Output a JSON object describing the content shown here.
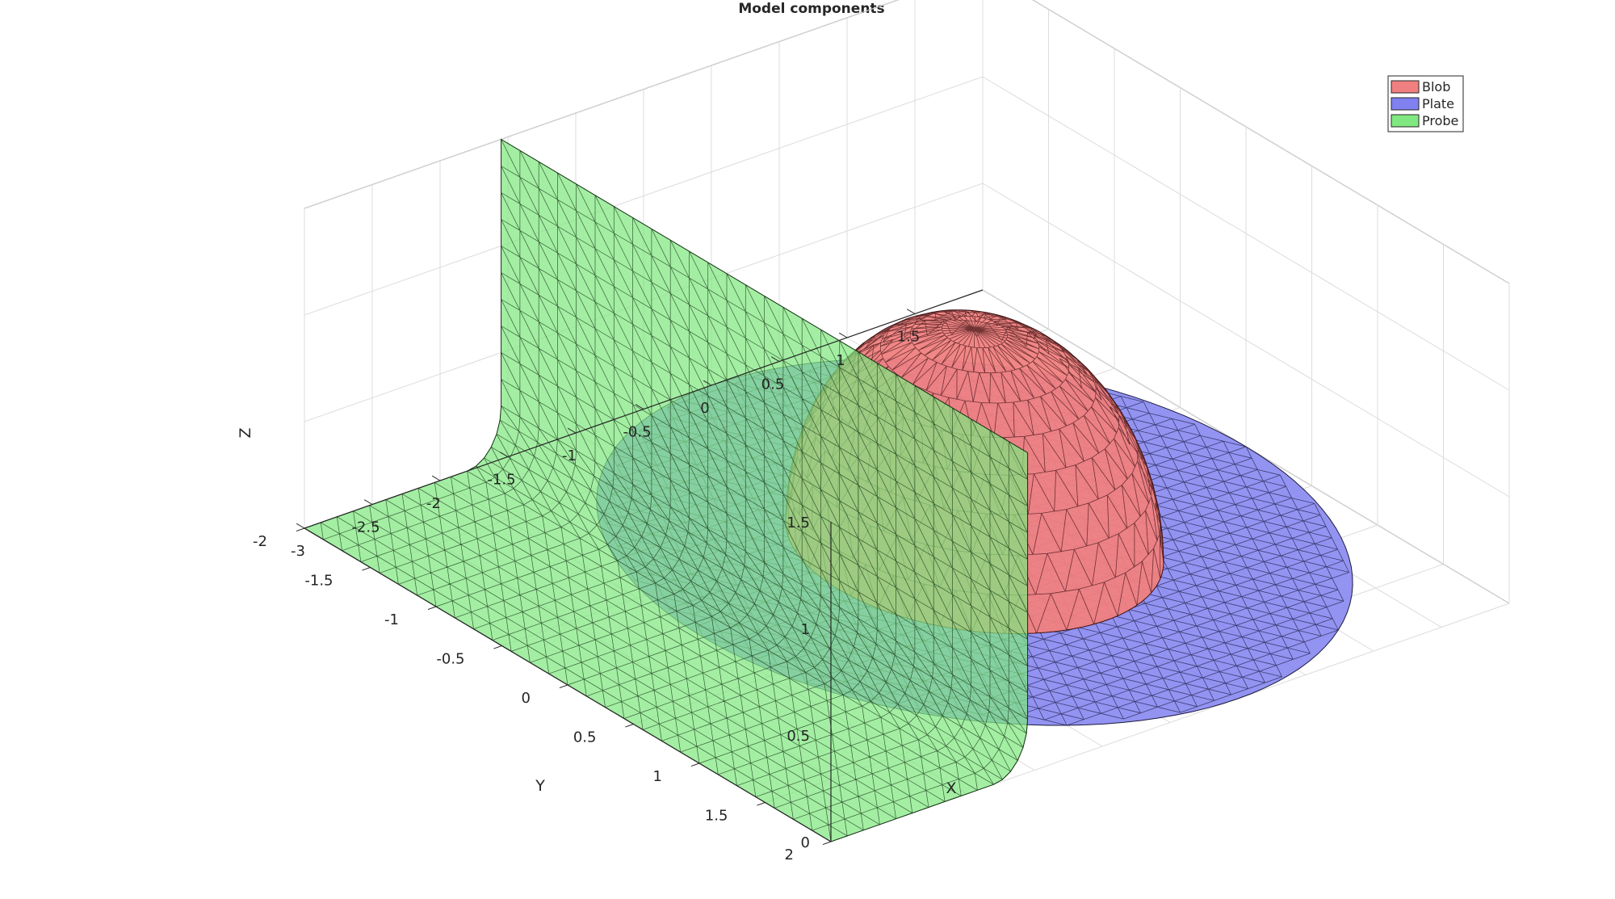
{
  "chart_data": {
    "type": "surface3d",
    "title": "Model components",
    "xlabel": "X",
    "ylabel": "Y",
    "zlabel": "Z",
    "xlim": [
      -3,
      2
    ],
    "ylim": [
      -2,
      2
    ],
    "zlim": [
      0,
      1.5
    ],
    "x_ticks": [
      -3,
      -2.5,
      -2,
      -1.5,
      -1,
      -0.5,
      0,
      0.5,
      1,
      1.5
    ],
    "x_tick_labels": [
      "-3",
      "-2.5",
      "-2",
      "-1.5",
      "-1",
      "-0.5",
      "0",
      "0.5",
      "1",
      "1.5"
    ],
    "y_ticks": [
      -2,
      -1.5,
      -1,
      -0.5,
      0,
      0.5,
      1,
      1.5,
      2
    ],
    "y_tick_labels": [
      "-2",
      "-1.5",
      "-1",
      "-0.5",
      "0",
      "0.5",
      "1",
      "1.5",
      "2"
    ],
    "z_ticks": [
      0,
      0.5,
      1,
      1.5
    ],
    "z_tick_labels": [
      "0",
      "0.5",
      "1",
      "1.5"
    ],
    "grid": true,
    "legend_position": "top-right",
    "series": [
      {
        "name": "Blob",
        "shape": "hemisphere",
        "center": [
          0,
          0,
          0
        ],
        "radius": 1,
        "color": "#f08080"
      },
      {
        "name": "Plate",
        "shape": "disc",
        "center": [
          0,
          0,
          0
        ],
        "radius": 2,
        "color": "#8080f0"
      },
      {
        "name": "Probe",
        "shape": "bent sheet",
        "y_range": [
          -2,
          2
        ],
        "x_range": [
          -3,
          -0.9
        ],
        "bend_x": -1.55,
        "bend_radius": 0.25,
        "z_max": 1.5,
        "color": "#80e880"
      }
    ]
  }
}
